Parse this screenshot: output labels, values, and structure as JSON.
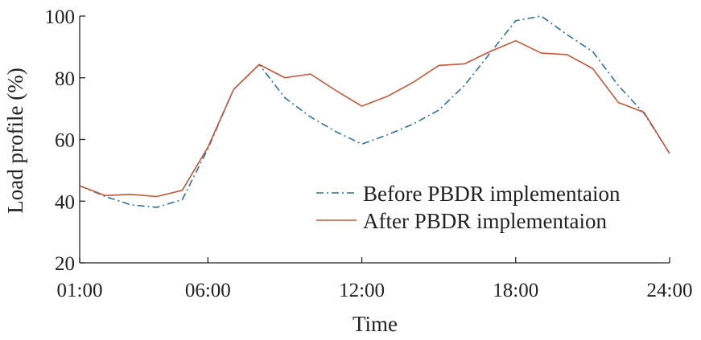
{
  "chart_data": {
    "type": "line",
    "xlabel": "Time",
    "ylabel": "Load profile (%)",
    "x": [
      1,
      2,
      3,
      4,
      5,
      6,
      7,
      8,
      9,
      10,
      11,
      12,
      13,
      14,
      15,
      16,
      17,
      18,
      19,
      20,
      21,
      22,
      23,
      24
    ],
    "xlim": [
      1,
      24
    ],
    "ylim": [
      20,
      100
    ],
    "x_ticks": [
      {
        "value": 1,
        "label": "01:00"
      },
      {
        "value": 6,
        "label": "06:00"
      },
      {
        "value": 12,
        "label": "12:00"
      },
      {
        "value": 18,
        "label": "18:00"
      },
      {
        "value": 24,
        "label": "24:00"
      }
    ],
    "y_ticks": [
      {
        "value": 20,
        "label": "20"
      },
      {
        "value": 40,
        "label": "40"
      },
      {
        "value": 60,
        "label": "60"
      },
      {
        "value": 80,
        "label": "80"
      },
      {
        "value": 100,
        "label": "100"
      }
    ],
    "grid": false,
    "legend_position": "lower-right",
    "series": [
      {
        "name": "Before PBDR implementaion",
        "color": "#2e6fa0",
        "style": "dash-dot",
        "values": [
          45.0,
          41.5,
          38.8,
          38.0,
          40.5,
          57.0,
          76.2,
          84.3,
          73.5,
          67.3,
          62.5,
          58.5,
          61.5,
          65.0,
          69.5,
          77.5,
          88.0,
          98.5,
          100.0,
          94.0,
          88.5,
          77.5,
          68.5,
          55.5
        ]
      },
      {
        "name": "After PBDR implementaion",
        "color": "#c0583a",
        "style": "solid",
        "values": [
          45.0,
          41.8,
          42.2,
          41.5,
          43.5,
          57.5,
          76.2,
          84.3,
          80.0,
          81.2,
          75.8,
          70.8,
          74.0,
          78.5,
          84.0,
          84.5,
          88.5,
          92.0,
          88.0,
          87.5,
          83.0,
          72.0,
          68.8,
          55.5
        ]
      }
    ]
  }
}
